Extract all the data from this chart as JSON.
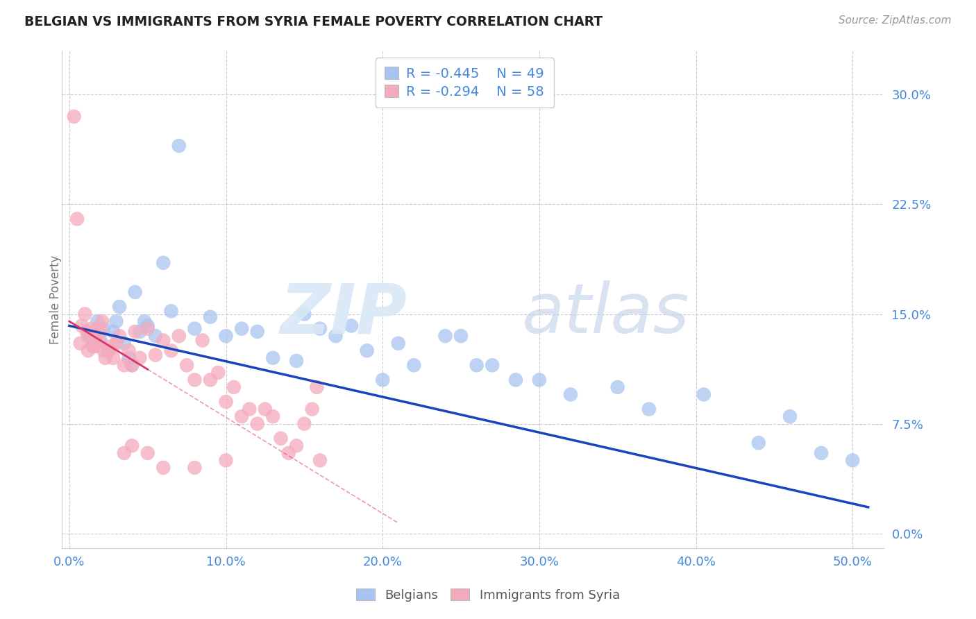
{
  "title": "BELGIAN VS IMMIGRANTS FROM SYRIA FEMALE POVERTY CORRELATION CHART",
  "source": "Source: ZipAtlas.com",
  "xlabel_vals": [
    0.0,
    10.0,
    20.0,
    30.0,
    40.0,
    50.0
  ],
  "ylabel": "Female Poverty",
  "ylabel_vals": [
    0.0,
    7.5,
    15.0,
    22.5,
    30.0
  ],
  "xlim": [
    -0.5,
    52.0
  ],
  "ylim": [
    -1.0,
    33.0
  ],
  "belgians_R": -0.445,
  "belgians_N": 49,
  "syria_R": -0.294,
  "syria_N": 58,
  "blue_color": "#a8c4f0",
  "pink_color": "#f5aabc",
  "blue_line_color": "#1a44bb",
  "pink_line_color": "#dd3366",
  "title_color": "#222222",
  "axis_label_color": "#4488dd",
  "source_color": "#999999",
  "belgians_x": [
    1.2,
    1.5,
    1.8,
    2.0,
    2.2,
    2.5,
    2.8,
    3.0,
    3.2,
    3.5,
    3.8,
    4.0,
    4.2,
    4.5,
    4.8,
    5.0,
    5.5,
    6.0,
    6.5,
    7.0,
    8.0,
    9.0,
    10.0,
    11.0,
    12.0,
    13.0,
    14.5,
    15.0,
    16.0,
    17.0,
    18.0,
    19.0,
    20.0,
    21.0,
    22.0,
    24.0,
    25.0,
    26.0,
    27.0,
    28.5,
    30.0,
    32.0,
    35.0,
    37.0,
    40.5,
    44.0,
    46.0,
    48.0,
    50.0
  ],
  "belgians_y": [
    13.5,
    12.8,
    14.5,
    13.2,
    14.0,
    12.5,
    13.8,
    14.5,
    15.5,
    13.0,
    12.0,
    11.5,
    16.5,
    13.8,
    14.5,
    14.2,
    13.5,
    18.5,
    15.2,
    26.5,
    14.0,
    14.8,
    13.5,
    14.0,
    13.8,
    12.0,
    11.8,
    15.0,
    14.0,
    13.5,
    14.2,
    12.5,
    10.5,
    13.0,
    11.5,
    13.5,
    13.5,
    11.5,
    11.5,
    10.5,
    10.5,
    9.5,
    10.0,
    8.5,
    9.5,
    6.2,
    8.0,
    5.5,
    5.0
  ],
  "syria_x": [
    0.3,
    0.5,
    0.7,
    0.8,
    1.0,
    1.1,
    1.2,
    1.3,
    1.4,
    1.5,
    1.6,
    1.7,
    1.8,
    1.9,
    2.0,
    2.1,
    2.2,
    2.3,
    2.5,
    2.7,
    2.8,
    3.0,
    3.2,
    3.5,
    3.8,
    4.0,
    4.2,
    4.5,
    5.0,
    5.5,
    6.0,
    6.5,
    7.0,
    7.5,
    8.0,
    8.5,
    9.0,
    9.5,
    10.0,
    10.5,
    11.0,
    11.5,
    12.0,
    12.5,
    13.0,
    13.5,
    14.0,
    14.5,
    15.0,
    15.5,
    15.8,
    16.0,
    3.5,
    4.0,
    5.0,
    6.0,
    8.0,
    10.0
  ],
  "syria_y": [
    28.5,
    21.5,
    13.0,
    14.2,
    15.0,
    13.8,
    12.5,
    13.5,
    14.0,
    12.8,
    13.5,
    12.8,
    14.0,
    13.2,
    13.8,
    14.5,
    12.5,
    12.0,
    12.5,
    12.8,
    12.0,
    13.0,
    13.5,
    11.5,
    12.5,
    11.5,
    13.8,
    12.0,
    14.0,
    12.2,
    13.2,
    12.5,
    13.5,
    11.5,
    10.5,
    13.2,
    10.5,
    11.0,
    9.0,
    10.0,
    8.0,
    8.5,
    7.5,
    8.5,
    8.0,
    6.5,
    5.5,
    6.0,
    7.5,
    8.5,
    10.0,
    5.0,
    5.5,
    6.0,
    5.5,
    4.5,
    4.5,
    5.0
  ],
  "grid_color": "#cccccc",
  "background_color": "#ffffff",
  "blue_trend_x0": 0.0,
  "blue_trend_y0": 14.2,
  "blue_trend_x1": 51.0,
  "blue_trend_y1": 1.8,
  "pink_trend_x0": 0.0,
  "pink_trend_y0": 14.5,
  "pink_trend_x1": 16.0,
  "pink_trend_y1": 4.0
}
